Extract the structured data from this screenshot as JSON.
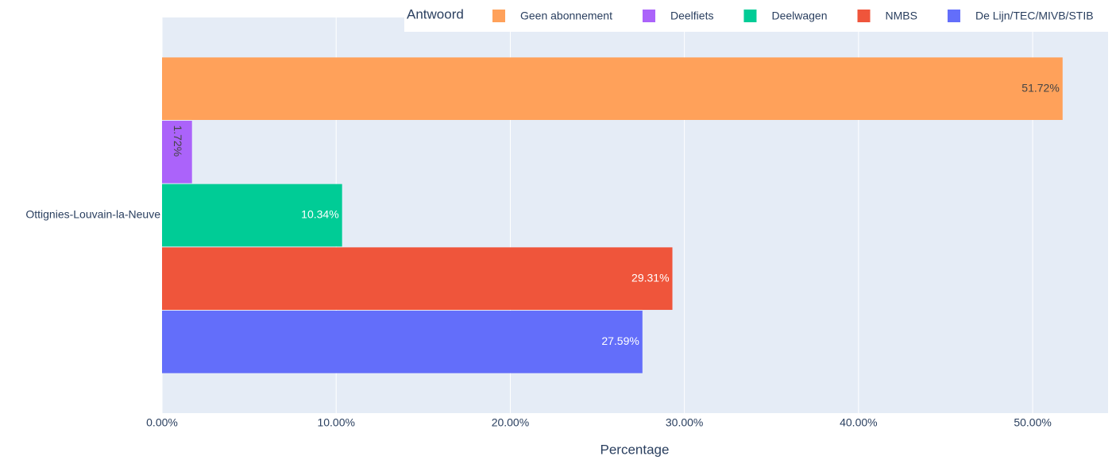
{
  "chart_data": {
    "type": "bar",
    "orientation": "horizontal",
    "categories": [
      "Ottignies-Louvain-la-Neuve"
    ],
    "series": [
      {
        "name": "Geen abonnement",
        "color": "#FFA15A",
        "values": [
          51.72
        ],
        "value_labels": [
          "51.72%"
        ]
      },
      {
        "name": "Deelfiets",
        "color": "#AB63FA",
        "values": [
          1.72
        ],
        "value_labels": [
          "1.72%"
        ]
      },
      {
        "name": "Deelwagen",
        "color": "#00CC96",
        "values": [
          10.34
        ],
        "value_labels": [
          "10.34%"
        ]
      },
      {
        "name": "NMBS",
        "color": "#EF553B",
        "values": [
          29.31
        ],
        "value_labels": [
          "29.31%"
        ]
      },
      {
        "name": "De Lijn/TEC/MIVB/STIB",
        "color": "#636EFA",
        "values": [
          27.59
        ],
        "value_labels": [
          "27.59%"
        ]
      }
    ],
    "legend_title": "Antwoord",
    "legend_position": "top-right",
    "xlabel": "Percentage",
    "xlim": [
      0,
      54.33
    ],
    "xticks": [
      {
        "value": 0,
        "label": "0.00%"
      },
      {
        "value": 10,
        "label": "10.00%"
      },
      {
        "value": 20,
        "label": "20.00%"
      },
      {
        "value": 30,
        "label": "30.00%"
      },
      {
        "value": 40,
        "label": "40.00%"
      },
      {
        "value": 50,
        "label": "50.00%"
      }
    ],
    "grid": true
  }
}
